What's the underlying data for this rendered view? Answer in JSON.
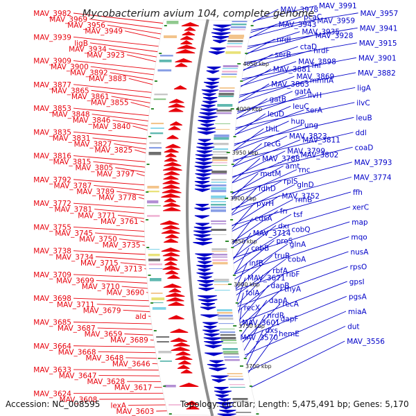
{
  "title": "Mycobacterium avium 104, complete genome",
  "footer": {
    "accession": "Accession: NC_008595",
    "summary": "Topology: circular; Length: 5,475,491 bp; Genes: 5,170"
  },
  "colors": {
    "forward": "#e8000b",
    "reverse": "#0000c8",
    "backbone": "#8c8c8c"
  },
  "position_labels": [
    "4050 kbp",
    "4000 kbp",
    "3950 kbp",
    "3900 kbp",
    "3850 kbp",
    "3800 kbp",
    "3750 kbp",
    "3700 kbp"
  ],
  "left_labels": [
    "MAV_3982",
    "MAV_3969",
    "MAV_3956",
    "MAV_3949",
    "MAV_3939",
    "ligB",
    "MAV_3934",
    "MAV_3923",
    "MAV_3909",
    "MAV_3900",
    "MAV_3892",
    "MAV_3883",
    "MAV_3877",
    "MAV_3865",
    "MAV_3861",
    "MAV_3855",
    "MAV_3853",
    "MAV_3848",
    "MAV_3846",
    "MAV_3840",
    "MAV_3835",
    "MAV_3831",
    "MAV_3827",
    "MAV_3825",
    "MAV_3816",
    "MAV_3815",
    "MAV_3805",
    "MAV_3797",
    "MAV_3792",
    "MAV_3787",
    "MAV_3789",
    "MAV_3778",
    "MAV_3772",
    "MAV_3781",
    "MAV_3771",
    "MAV_3761",
    "MAV_3755",
    "MAV_3745",
    "MAV_3750",
    "MAV_3735",
    "MAV_3738",
    "MAV_3734",
    "MAV_3715",
    "MAV_3713",
    "MAV_3709",
    "MAV_3699",
    "MAV_3710",
    "MAV_3690",
    "MAV_3698",
    "MAV_3711",
    "MAV_3679",
    "ald",
    "MAV_3685",
    "MAV_3687",
    "MAV_3659",
    "MAV_3689",
    "MAV_3664",
    "MAV_3668",
    "MAV_3648",
    "MAV_3646",
    "MAV_3633",
    "MAV_3647",
    "MAV_3628",
    "MAV_3617",
    "MAV_3624",
    "MAV_3608",
    "lexA",
    "MAV_3603"
  ],
  "right_labels": [
    "MAV_3991",
    "MAV_3978",
    "MAV_3957",
    "pcaC",
    "MAV_3959",
    "MAV_3943",
    "MAV_3941",
    "MAV_3935",
    "MAV_3928",
    "nrdI",
    "MAV_3915",
    "ctaD",
    "nrdF",
    "serB",
    "MAV_3901",
    "MAV_3898",
    "fni",
    "MAV_3881",
    "MAV_3882",
    "MAV_3869",
    "mmnA",
    "MAV_3863",
    "ligA",
    "gatA",
    "ilvH",
    "gatB",
    "ilvC",
    "leuC",
    "serA",
    "leuD",
    "leuB",
    "hup",
    "ung",
    "thiL",
    "ddl",
    "MAV_3823",
    "MAV_3811",
    "recG",
    "coaD",
    "MAV_3799",
    "MAV_3802",
    "MAV_3788",
    "MAV_3793",
    "amt",
    "rnc",
    "mutM",
    "MAV_3774",
    "rplS",
    "glnD",
    "fdhD",
    "ffh",
    "MAV_3752",
    "rnhB",
    "pyrH",
    "xerC",
    "frr",
    "tsf",
    "cdsA",
    "map",
    "dxr",
    "cobQ",
    "MAV_3714",
    "mqo",
    "proS",
    "glnA",
    "cobB",
    "nusA",
    "truB",
    "cobA",
    "infB",
    "rpsO",
    "rbfA",
    "ribF",
    "MAV_3671",
    "gpsI",
    "dapB",
    "thyA",
    "folA",
    "pgsA",
    "dapA",
    "recA",
    "recX",
    "miaA",
    "nrdR",
    "dapF",
    "MAV_3601",
    "dut",
    "dxs",
    "hemE",
    "MAV_3570",
    "MAV_3556"
  ]
}
